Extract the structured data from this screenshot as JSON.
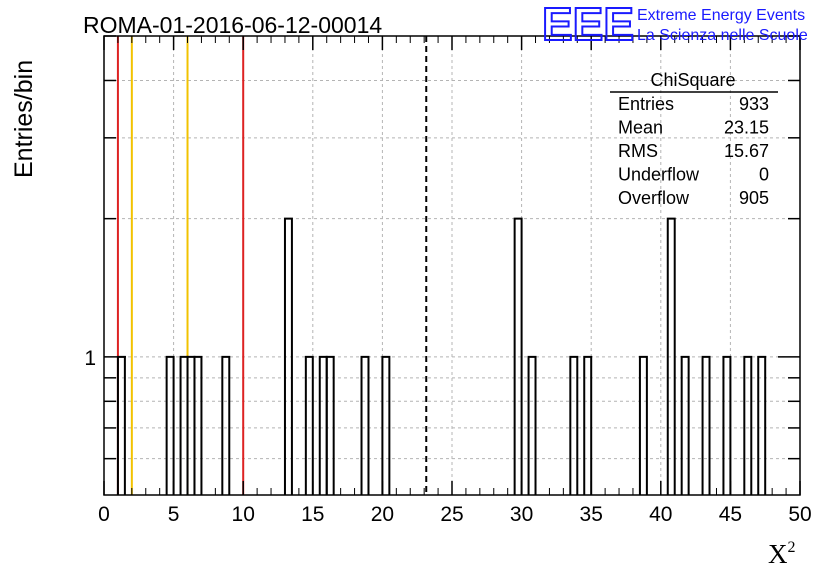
{
  "chart_data": {
    "type": "histogram",
    "title": "ROMA-01-2016-06-12-00014",
    "xlabel": "X",
    "xlabel_superscript": "2",
    "ylabel": "Entries/bin",
    "xlim": [
      0,
      50
    ],
    "ylim": [
      0.5,
      5.0
    ],
    "y_scale": "log",
    "grid": true,
    "x_ticks": [
      0,
      5,
      10,
      15,
      20,
      25,
      30,
      35,
      40,
      45,
      50
    ],
    "y_tick_labels": [
      {
        "value": 1,
        "label": "1"
      }
    ],
    "bin_width": 0.5,
    "bins": [
      {
        "x": 1.0,
        "count": 1
      },
      {
        "x": 4.5,
        "count": 1
      },
      {
        "x": 5.5,
        "count": 1
      },
      {
        "x": 6.0,
        "count": 1
      },
      {
        "x": 6.5,
        "count": 1
      },
      {
        "x": 8.5,
        "count": 1
      },
      {
        "x": 13.0,
        "count": 2
      },
      {
        "x": 14.5,
        "count": 1
      },
      {
        "x": 15.5,
        "count": 1
      },
      {
        "x": 16.0,
        "count": 1
      },
      {
        "x": 18.5,
        "count": 1
      },
      {
        "x": 20.0,
        "count": 1
      },
      {
        "x": 29.5,
        "count": 2
      },
      {
        "x": 30.5,
        "count": 1
      },
      {
        "x": 33.5,
        "count": 1
      },
      {
        "x": 34.5,
        "count": 1
      },
      {
        "x": 38.5,
        "count": 1
      },
      {
        "x": 40.5,
        "count": 2
      },
      {
        "x": 41.5,
        "count": 1
      },
      {
        "x": 43.0,
        "count": 1
      },
      {
        "x": 44.5,
        "count": 1
      },
      {
        "x": 46.0,
        "count": 1
      },
      {
        "x": 47.0,
        "count": 1
      }
    ],
    "vertical_lines": [
      {
        "x": 1.0,
        "color": "#dd2222",
        "style": "solid"
      },
      {
        "x": 2.0,
        "color": "#f2c200",
        "style": "solid"
      },
      {
        "x": 6.0,
        "color": "#f2c200",
        "style": "solid"
      },
      {
        "x": 10.0,
        "color": "#dd2222",
        "style": "solid"
      },
      {
        "x": 23.15,
        "color": "#000000",
        "style": "dashed"
      }
    ],
    "stats_box": {
      "title": "ChiSquare",
      "rows": [
        {
          "label": "Entries",
          "value": "933"
        },
        {
          "label": "Mean",
          "value": "23.15"
        },
        {
          "label": "RMS",
          "value": "15.67"
        },
        {
          "label": "Underflow",
          "value": "0"
        },
        {
          "label": "Overflow",
          "value": "905"
        }
      ]
    }
  },
  "branding": {
    "logo": "EEE",
    "line1": "Extreme Energy Events",
    "line2": "La Scienza nelle Scuole",
    "color": "#1a1aff"
  }
}
